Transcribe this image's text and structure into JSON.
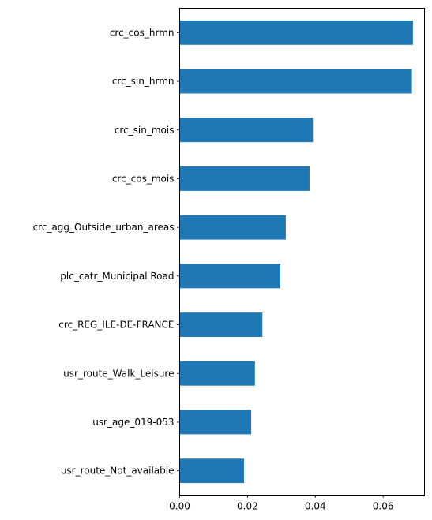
{
  "chart_data": {
    "type": "bar",
    "orientation": "horizontal",
    "title": "",
    "xlabel": "",
    "ylabel": "",
    "categories": [
      "crc_cos_hrmn",
      "crc_sin_hrmn",
      "crc_sin_mois",
      "crc_cos_mois",
      "crc_agg_Outside_urban_areas",
      "plc_catr_Municipal Road",
      "crc_REG_ILE-DE-FRANCE",
      "usr_route_Walk_Leisure",
      "usr_age_019-053",
      "usr_route_Not_available"
    ],
    "values": [
      0.0688,
      0.0685,
      0.0393,
      0.0383,
      0.0313,
      0.0297,
      0.0244,
      0.0222,
      0.0211,
      0.019
    ],
    "xlim": [
      0,
      0.0722
    ],
    "xticks": [
      0.0,
      0.02,
      0.04,
      0.06
    ],
    "xtick_labels": [
      "0.00",
      "0.02",
      "0.04",
      "0.06"
    ],
    "grid": false,
    "legend": "none",
    "bar_color": "#1f77b4"
  }
}
